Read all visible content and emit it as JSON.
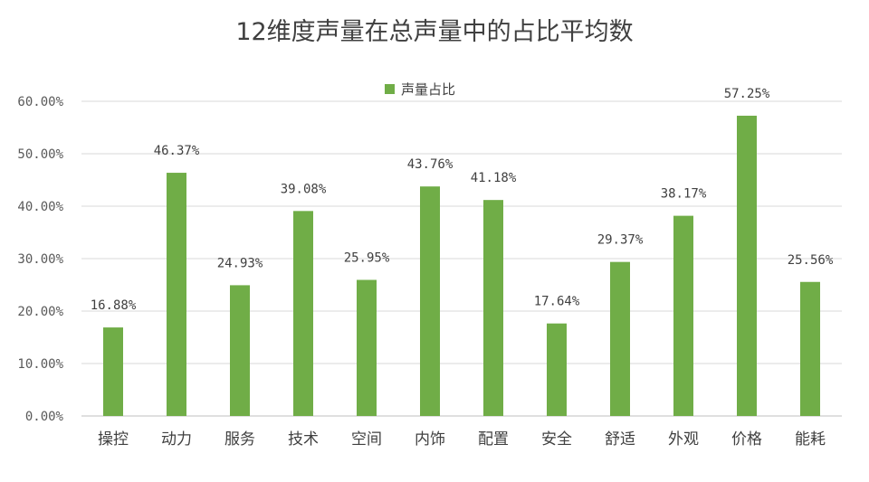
{
  "chart_data": {
    "type": "bar",
    "title": "12维度声量在总声量中的占比平均数",
    "legend": "top-center",
    "grid": true,
    "ylim": [
      0,
      60
    ],
    "yticks": [
      "0.00%",
      "10.00%",
      "20.00%",
      "30.00%",
      "40.00%",
      "50.00%",
      "60.00%"
    ],
    "categories": [
      "操控",
      "动力",
      "服务",
      "技术",
      "空间",
      "内饰",
      "配置",
      "安全",
      "舒适",
      "外观",
      "价格",
      "能耗"
    ],
    "series": [
      {
        "name": "声量占比",
        "color": "#70AD47",
        "values": [
          16.88,
          46.37,
          24.93,
          39.08,
          25.95,
          43.76,
          41.18,
          17.64,
          29.37,
          38.17,
          57.25,
          25.56
        ],
        "labels": [
          "16.88%",
          "46.37%",
          "24.93%",
          "39.08%",
          "25.95%",
          "43.76%",
          "41.18%",
          "17.64%",
          "29.37%",
          "38.17%",
          "57.25%",
          "25.56%"
        ]
      }
    ]
  }
}
